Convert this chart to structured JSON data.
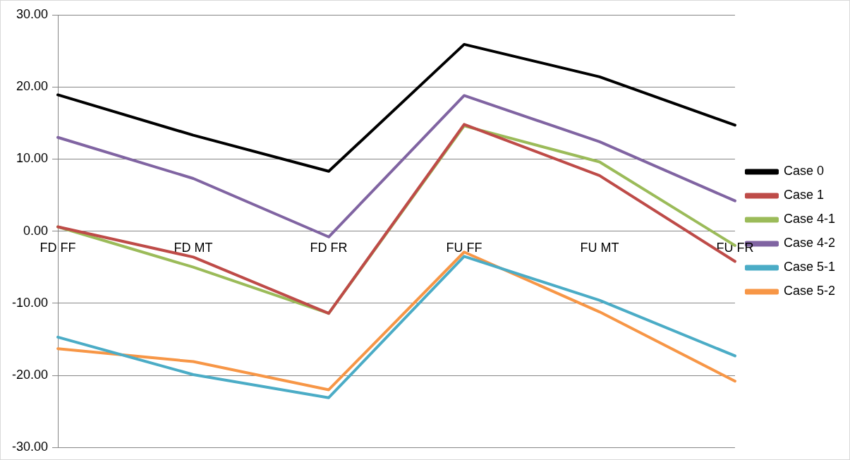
{
  "chart_data": {
    "type": "line",
    "categories": [
      "FD FF",
      "FD MT",
      "FD FR",
      "FU FF",
      "FU MT",
      "FU FR"
    ],
    "series": [
      {
        "name": "Case 0",
        "color": "#000000",
        "values": [
          18.9,
          13.3,
          8.3,
          25.9,
          21.4,
          14.7
        ]
      },
      {
        "name": "Case 1",
        "color": "#be4b48",
        "values": [
          0.6,
          -3.6,
          -11.4,
          14.8,
          7.7,
          -4.2
        ]
      },
      {
        "name": "Case 4-1",
        "color": "#9bbb59",
        "values": [
          0.6,
          -5.0,
          -11.4,
          14.6,
          9.6,
          -2.0
        ]
      },
      {
        "name": "Case 4-2",
        "color": "#8064a2",
        "values": [
          13.0,
          7.3,
          -0.8,
          18.8,
          12.4,
          4.2
        ]
      },
      {
        "name": "Case 5-1",
        "color": "#4bacc6",
        "values": [
          -14.7,
          -19.9,
          -23.1,
          -3.5,
          -9.6,
          -17.3
        ]
      },
      {
        "name": "Case 5-2",
        "color": "#f79646",
        "values": [
          -16.3,
          -18.1,
          -22.0,
          -2.9,
          -11.2,
          -20.8
        ]
      }
    ],
    "ylim": [
      -30,
      30
    ],
    "yticks": [
      {
        "value": -30,
        "label": "-30.00"
      },
      {
        "value": -20,
        "label": "-20.00"
      },
      {
        "value": -10,
        "label": "-10.00"
      },
      {
        "value": 0,
        "label": "0.00"
      },
      {
        "value": 10,
        "label": "10.00"
      },
      {
        "value": 20,
        "label": "20.00"
      },
      {
        "value": 30,
        "label": "30.00"
      }
    ],
    "grid": "y",
    "legend": "right",
    "marker": "none",
    "line_style": "solid"
  }
}
